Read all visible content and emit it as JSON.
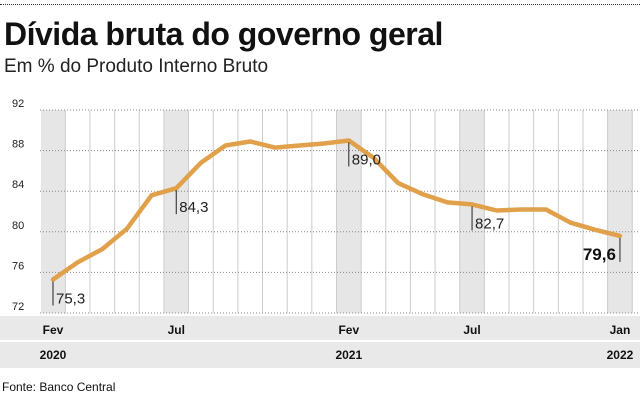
{
  "header": {
    "title": "Dívida bruta do governo geral",
    "subtitle": "Em % do Produto Interno Bruto"
  },
  "footer": {
    "source": "Fonte: Banco Central"
  },
  "colors": {
    "line": "#e1a04a",
    "shade": "#e6e6e6",
    "grid": "#cccccc",
    "axis_band": "#e9e9e9"
  },
  "chart_data": {
    "type": "line",
    "x": [
      "2020-02",
      "2020-03",
      "2020-04",
      "2020-05",
      "2020-06",
      "2020-07",
      "2020-08",
      "2020-09",
      "2020-10",
      "2020-11",
      "2020-12",
      "2021-01",
      "2021-02",
      "2021-03",
      "2021-04",
      "2021-05",
      "2021-06",
      "2021-07",
      "2021-08",
      "2021-09",
      "2021-10",
      "2021-11",
      "2021-12",
      "2022-01"
    ],
    "series": [
      {
        "values": [
          75.3,
          77.0,
          78.3,
          80.3,
          83.6,
          84.3,
          86.8,
          88.5,
          88.9,
          88.3,
          88.5,
          88.7,
          89.0,
          87.3,
          84.8,
          83.7,
          82.9,
          82.7,
          82.1,
          82.2,
          82.2,
          80.9,
          80.2,
          79.6
        ]
      }
    ],
    "ylim": [
      72,
      92
    ],
    "yticks": [
      72,
      76,
      80,
      84,
      88,
      92
    ],
    "grid": true,
    "shaded_months": [
      "2020-02",
      "2020-07",
      "2021-02",
      "2021-07",
      "2022-01"
    ],
    "month_labels": [
      {
        "x": "2020-02",
        "label": "Fev"
      },
      {
        "x": "2020-07",
        "label": "Jul"
      },
      {
        "x": "2021-02",
        "label": "Fev"
      },
      {
        "x": "2021-07",
        "label": "Jul"
      },
      {
        "x": "2022-01",
        "label": "Jan"
      }
    ],
    "year_labels": [
      {
        "x": "2020-02",
        "label": "2020"
      },
      {
        "x": "2021-02",
        "label": "2021"
      },
      {
        "x": "2022-01",
        "label": "2022"
      }
    ],
    "annotations": [
      {
        "x": "2020-02",
        "label": "75,3",
        "placement": "below"
      },
      {
        "x": "2020-07",
        "label": "84,3",
        "placement": "below"
      },
      {
        "x": "2021-02",
        "label": "89,0",
        "placement": "below"
      },
      {
        "x": "2021-07",
        "label": "82,7",
        "placement": "below"
      },
      {
        "x": "2022-01",
        "label": "79,6",
        "placement": "below-left",
        "bold": true
      }
    ]
  }
}
